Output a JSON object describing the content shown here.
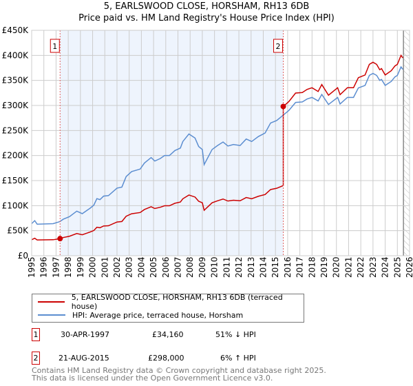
{
  "title": "5, EARLSWOOD CLOSE, HORSHAM, RH13 6DB",
  "subtitle": "Price paid vs. HM Land Registry's House Price Index (HPI)",
  "chart_data": {
    "type": "line",
    "ylim": [
      0,
      450000
    ],
    "xlim": [
      1995,
      2026
    ],
    "yticks": [
      {
        "v": 0,
        "label": "£0"
      },
      {
        "v": 50000,
        "label": "£50K"
      },
      {
        "v": 100000,
        "label": "£100K"
      },
      {
        "v": 150000,
        "label": "£150K"
      },
      {
        "v": 200000,
        "label": "£200K"
      },
      {
        "v": 250000,
        "label": "£250K"
      },
      {
        "v": 300000,
        "label": "£300K"
      },
      {
        "v": 350000,
        "label": "£350K"
      },
      {
        "v": 400000,
        "label": "£400K"
      },
      {
        "v": 450000,
        "label": "£450K"
      }
    ],
    "xticks": [
      "1995",
      "1996",
      "1997",
      "1998",
      "1999",
      "2000",
      "2001",
      "2002",
      "2003",
      "2004",
      "2005",
      "2006",
      "2007",
      "2008",
      "2009",
      "2010",
      "2011",
      "2012",
      "2013",
      "2014",
      "2015",
      "2016",
      "2017",
      "2018",
      "2019",
      "2020",
      "2021",
      "2022",
      "2023",
      "2024",
      "2025",
      "2026"
    ],
    "grid": true,
    "shaded_range": [
      1997.33,
      2015.64
    ],
    "forecast_hatch_from": 2025.5,
    "series": [
      {
        "name": "HPI: Average price, terraced house, Horsham",
        "color": "#5b8dd0",
        "x": [
          1995.0,
          1995.25,
          1995.45,
          1996.76,
          1997.3,
          1997.6,
          1998.1,
          1998.7,
          1999.15,
          1999.8,
          2000.1,
          2000.35,
          2000.6,
          2000.9,
          2001.3,
          2002.0,
          2002.4,
          2002.75,
          2003.2,
          2003.9,
          2004.25,
          2004.8,
          2005.1,
          2005.55,
          2005.9,
          2006.3,
          2006.75,
          2007.2,
          2007.4,
          2007.9,
          2008.4,
          2008.7,
          2009.0,
          2009.15,
          2009.8,
          2010.25,
          2010.7,
          2011.1,
          2011.55,
          2012.1,
          2012.6,
          2013.05,
          2013.6,
          2014.15,
          2014.6,
          2015.1,
          2015.65,
          2016.1,
          2016.65,
          2017.2,
          2017.6,
          2018.0,
          2018.5,
          2018.8,
          2019.35,
          2020.1,
          2020.3,
          2020.9,
          2021.4,
          2021.8,
          2022.35,
          2022.7,
          2023.0,
          2023.3,
          2023.55,
          2023.7,
          2024.0,
          2024.5,
          2024.8,
          2025.0,
          2025.3,
          2025.45
        ],
        "y": [
          64000,
          70000,
          63000,
          64000,
          68000,
          73000,
          78000,
          89000,
          84000,
          95000,
          101000,
          114000,
          112000,
          119000,
          120000,
          135000,
          137000,
          158000,
          168000,
          173000,
          185000,
          196000,
          189000,
          194000,
          200000,
          200000,
          210000,
          215000,
          228000,
          243000,
          235000,
          218000,
          212000,
          182000,
          212000,
          220000,
          227000,
          219000,
          222000,
          220000,
          233000,
          228000,
          238000,
          245000,
          265000,
          270000,
          281000,
          290000,
          306000,
          307000,
          313000,
          316000,
          309000,
          322000,
          302000,
          316000,
          303000,
          316000,
          316000,
          335000,
          340000,
          360000,
          364000,
          360000,
          350000,
          352000,
          340000,
          348000,
          357000,
          360000,
          377000,
          372000
        ]
      },
      {
        "name": "5, EARLSWOOD CLOSE, HORSHAM, RH13 6DB (terraced house)",
        "color": "#cc0000"
      }
    ],
    "sales": [
      {
        "id": "1",
        "x": 1997.33,
        "y": 34160
      },
      {
        "id": "2",
        "x": 2015.64,
        "y": 298000
      }
    ]
  },
  "legend": {
    "red": "5, EARLSWOOD CLOSE, HORSHAM, RH13 6DB (terraced house)",
    "blue": "HPI: Average price, terraced house, Horsham"
  },
  "table": [
    {
      "id": "1",
      "date": "30-APR-1997",
      "price": "£34,160",
      "hpi": "51% ↓ HPI"
    },
    {
      "id": "2",
      "date": "21-AUG-2015",
      "price": "£298,000",
      "hpi": "6% ↑ HPI"
    }
  ],
  "footer": [
    "Contains HM Land Registry data © Crown copyright and database right 2025.",
    "This data is licensed under the Open Government Licence v3.0."
  ]
}
